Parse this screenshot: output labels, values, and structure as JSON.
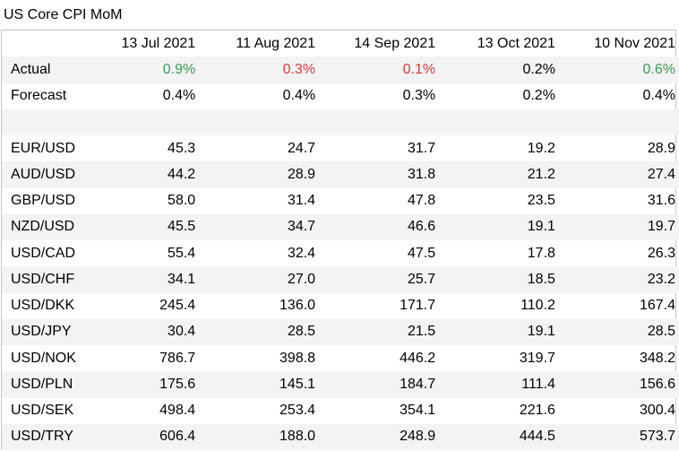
{
  "title": "US Core CPI MoM",
  "dates": [
    "13 Jul 2021",
    "11 Aug 2021",
    "14 Sep 2021",
    "13 Oct 2021",
    "10 Nov 2021"
  ],
  "actual": {
    "label": "Actual",
    "values": [
      "0.9%",
      "0.3%",
      "0.1%",
      "0.2%",
      "0.6%"
    ],
    "status": [
      "pos",
      "neg",
      "neg",
      "neu",
      "pos"
    ]
  },
  "forecast": {
    "label": "Forecast",
    "values": [
      "0.4%",
      "0.4%",
      "0.3%",
      "0.2%",
      "0.4%"
    ]
  },
  "pairs": [
    {
      "name": "EUR/USD",
      "values": [
        "45.3",
        "24.7",
        "31.7",
        "19.2",
        "28.9"
      ]
    },
    {
      "name": "AUD/USD",
      "values": [
        "44.2",
        "28.9",
        "31.8",
        "21.2",
        "27.4"
      ]
    },
    {
      "name": "GBP/USD",
      "values": [
        "58.0",
        "31.4",
        "47.8",
        "23.5",
        "31.6"
      ]
    },
    {
      "name": "NZD/USD",
      "values": [
        "45.5",
        "34.7",
        "46.6",
        "19.1",
        "19.7"
      ]
    },
    {
      "name": "USD/CAD",
      "values": [
        "55.4",
        "32.4",
        "47.5",
        "17.8",
        "26.3"
      ]
    },
    {
      "name": "USD/CHF",
      "values": [
        "34.1",
        "27.0",
        "25.7",
        "18.5",
        "23.2"
      ]
    },
    {
      "name": "USD/DKK",
      "values": [
        "245.4",
        "136.0",
        "171.7",
        "110.2",
        "167.4"
      ]
    },
    {
      "name": "USD/JPY",
      "values": [
        "30.4",
        "28.5",
        "21.5",
        "19.1",
        "28.5"
      ]
    },
    {
      "name": "USD/NOK",
      "values": [
        "786.7",
        "398.8",
        "446.2",
        "319.7",
        "348.2"
      ]
    },
    {
      "name": "USD/PLN",
      "values": [
        "175.6",
        "145.1",
        "184.7",
        "111.4",
        "156.6"
      ]
    },
    {
      "name": "USD/SEK",
      "values": [
        "498.4",
        "253.4",
        "354.1",
        "221.6",
        "300.4"
      ]
    },
    {
      "name": "USD/TRY",
      "values": [
        "606.4",
        "188.0",
        "248.9",
        "444.5",
        "573.7"
      ]
    }
  ],
  "colors": {
    "positive": "#3a9a54",
    "negative": "#d83b3b",
    "band": "#f3f3f3",
    "border": "#c7c7c7"
  }
}
